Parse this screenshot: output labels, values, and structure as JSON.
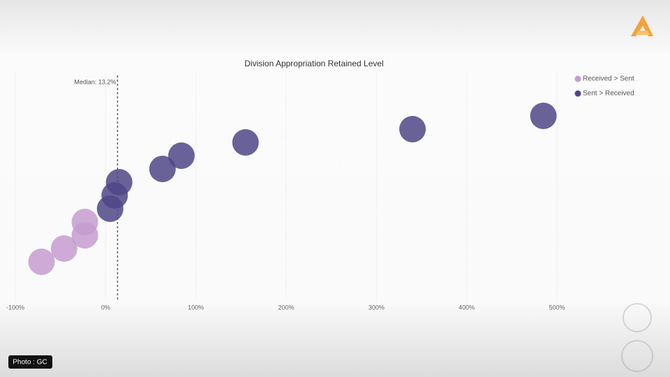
{
  "chart_data": {
    "type": "scatter",
    "title": "Division Appropriation Retained Level",
    "xlim": [
      -100,
      500
    ],
    "xticks": [
      {
        "value": -100,
        "label": "-100%"
      },
      {
        "value": 0,
        "label": "0%"
      },
      {
        "value": 100,
        "label": "100%"
      },
      {
        "value": 200,
        "label": "200%"
      },
      {
        "value": 300,
        "label": "300%"
      },
      {
        "value": 400,
        "label": "400%"
      },
      {
        "value": 500,
        "label": "500%"
      }
    ],
    "ylim": [
      -2,
      15
    ],
    "grid": true,
    "legend": "top-right",
    "median": {
      "value": 13.2,
      "label": "Median: 13.2%"
    },
    "series": [
      {
        "name": "Received > Sent",
        "color": "#c49ccf",
        "x": [
          -71,
          -46,
          -23,
          -23
        ],
        "values": [
          1,
          2,
          3,
          4
        ]
      },
      {
        "name": "Sent > Received",
        "color": "#4f4686",
        "x": [
          5,
          10,
          15,
          63,
          84,
          155,
          340,
          485
        ],
        "values": [
          5,
          6,
          7,
          8,
          9,
          10,
          11,
          12
        ]
      }
    ]
  },
  "credit": "Photo : GC"
}
